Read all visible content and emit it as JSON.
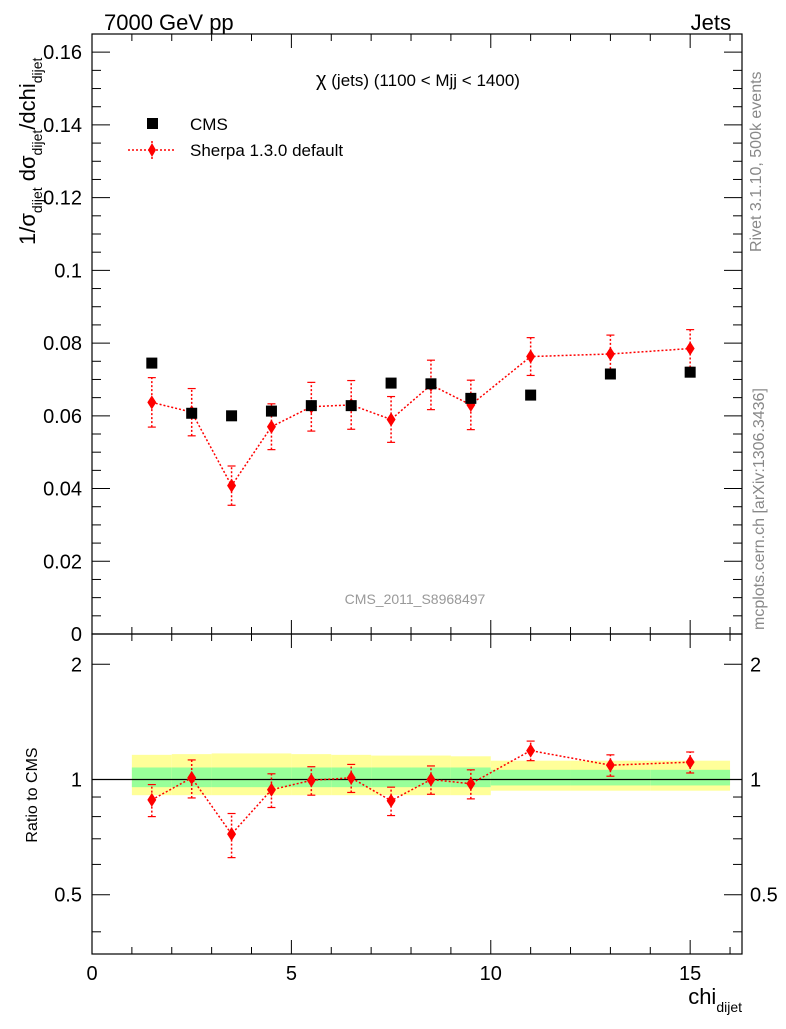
{
  "header": {
    "left": "7000 GeV pp",
    "right": "Jets"
  },
  "side_labels": {
    "rivet": "Rivet 3.1.10,  500k events",
    "mcplots": "mcplots.cern.ch [arXiv:1306.3436]"
  },
  "watermark": "CMS_2011_S8968497",
  "plot_title": {
    "greek": "χ",
    "rest": " (jets) (1100 < Mjj < 1400)"
  },
  "axes": {
    "ylabel_main": {
      "p1": "1/σ",
      "s1": "dijet",
      "p2": " dσ",
      "s2": "dijet",
      "p3": "/dchi",
      "s3": "dijet"
    },
    "ylabel_ratio": "Ratio to CMS",
    "xlabel": {
      "main": "chi",
      "sub": "dijet"
    }
  },
  "legend": {
    "cms": "CMS",
    "sherpa": "Sherpa 1.3.0 default"
  },
  "colors": {
    "mc": "#ff0000",
    "band_outer": "#ffff99",
    "band_inner": "#99ff99",
    "data": "#000000"
  },
  "chart_data": {
    "type": "scatter",
    "xlim": [
      0,
      16.3
    ],
    "main": {
      "ylim": [
        0,
        0.165
      ],
      "yticks": [
        0,
        0.02,
        0.04,
        0.06,
        0.08,
        0.1,
        0.12,
        0.14,
        0.16
      ],
      "yticklabels": [
        "0",
        "0.02",
        "0.04",
        "0.06",
        "0.08",
        "0.1",
        "0.12",
        "0.14",
        "0.16"
      ]
    },
    "ratio": {
      "ylim": [
        0.35,
        2.4
      ],
      "log": true,
      "yticks": [
        0.5,
        1,
        2
      ],
      "yticklabels": [
        "0.5",
        "1",
        "2"
      ]
    },
    "xticks": [
      0,
      5,
      10,
      15
    ],
    "xticklabels": [
      "0",
      "5",
      "10",
      "15"
    ],
    "series": [
      {
        "name": "CMS",
        "style": "square",
        "x": [
          1.5,
          2.5,
          3.5,
          4.5,
          5.5,
          6.5,
          7.5,
          8.5,
          9.5,
          11,
          13,
          15
        ],
        "y": [
          0.0745,
          0.0607,
          0.06,
          0.0613,
          0.0628,
          0.0628,
          0.069,
          0.0688,
          0.0648,
          0.0657,
          0.0715,
          0.072
        ]
      },
      {
        "name": "Sherpa 1.3.0 default",
        "style": "diamond-dotted",
        "x": [
          1.5,
          2.5,
          3.5,
          4.5,
          5.5,
          6.5,
          7.5,
          8.5,
          9.5,
          11,
          13,
          15
        ],
        "y": [
          0.0637,
          0.061,
          0.0408,
          0.057,
          0.0625,
          0.063,
          0.059,
          0.0685,
          0.063,
          0.0763,
          0.077,
          0.0785
        ],
        "yerr": [
          0.0068,
          0.0065,
          0.0054,
          0.0063,
          0.0067,
          0.0067,
          0.0063,
          0.0068,
          0.0068,
          0.0052,
          0.0052,
          0.0052
        ],
        "ratio": [
          0.885,
          1.01,
          0.72,
          0.94,
          0.995,
          1.01,
          0.88,
          1.0,
          0.975,
          1.19,
          1.09,
          1.11
        ],
        "ratio_err": [
          0.085,
          0.115,
          0.095,
          0.095,
          0.085,
          0.085,
          0.075,
          0.085,
          0.085,
          0.07,
          0.07,
          0.07
        ]
      }
    ],
    "ratio_bands": {
      "x_edges": [
        1,
        2,
        3,
        4,
        5,
        6,
        7,
        8,
        9,
        10,
        12,
        14,
        16
      ],
      "outer_up": [
        0.16,
        0.165,
        0.17,
        0.17,
        0.165,
        0.16,
        0.155,
        0.155,
        0.15,
        0.12,
        0.12,
        0.12
      ],
      "outer_down": [
        0.09,
        0.09,
        0.09,
        0.09,
        0.09,
        0.09,
        0.09,
        0.09,
        0.09,
        0.065,
        0.065,
        0.065
      ],
      "inner_up": [
        0.075,
        0.075,
        0.075,
        0.075,
        0.075,
        0.075,
        0.075,
        0.075,
        0.075,
        0.06,
        0.06,
        0.06
      ],
      "inner_down": [
        0.045,
        0.045,
        0.045,
        0.045,
        0.045,
        0.045,
        0.045,
        0.045,
        0.045,
        0.035,
        0.035,
        0.035
      ]
    }
  }
}
